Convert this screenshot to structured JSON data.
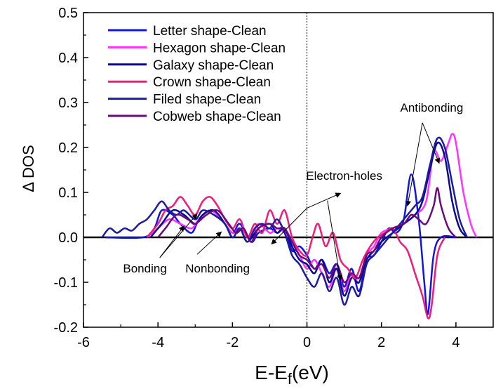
{
  "chart_data": {
    "type": "line",
    "ylabel": "Δ DOS",
    "xlabel_main": "E-E",
    "xlabel_sub": "f",
    "xlabel_unit": "(eV)",
    "xlim": [
      -6,
      5
    ],
    "ylim": [
      -0.2,
      0.5
    ],
    "x_ticks": [
      -6,
      -4,
      -2,
      0,
      2,
      4
    ],
    "x_tick_labels": [
      "-6",
      "-4",
      "-2",
      "0",
      "2",
      "4"
    ],
    "y_ticks": [
      -0.2,
      -0.1,
      0.0,
      0.1,
      0.2,
      0.3,
      0.4,
      0.5
    ],
    "y_tick_labels": [
      "-0.2",
      "-0.1",
      "0.0",
      "0.1",
      "0.2",
      "0.3",
      "0.4",
      "0.5"
    ],
    "grid": false,
    "legend_position": "top-left",
    "reference_lines": {
      "zero_y": true,
      "fermi_x": 0
    },
    "series": [
      {
        "name": "Letter shape-Clean",
        "color": "#1414e0",
        "points": [
          [
            -5.4,
            0
          ],
          [
            -4.4,
            0
          ],
          [
            -4.1,
            0.02
          ],
          [
            -3.9,
            0.06
          ],
          [
            -3.6,
            0.05
          ],
          [
            -3.4,
            0.03
          ],
          [
            -3.1,
            0.01
          ],
          [
            -2.9,
            0.04
          ],
          [
            -2.6,
            0.06
          ],
          [
            -2.3,
            0.04
          ],
          [
            -2.0,
            0.01
          ],
          [
            -1.8,
            0.03
          ],
          [
            -1.5,
            -0.01
          ],
          [
            -1.3,
            0.01
          ],
          [
            -1.0,
            0.02
          ],
          [
            -0.8,
            0.01
          ],
          [
            -0.6,
            0.02
          ],
          [
            -0.4,
            -0.03
          ],
          [
            -0.2,
            -0.02
          ],
          [
            0.0,
            -0.04
          ],
          [
            0.2,
            -0.07
          ],
          [
            0.4,
            -0.05
          ],
          [
            0.6,
            -0.08
          ],
          [
            0.8,
            -0.06
          ],
          [
            1.0,
            -0.11
          ],
          [
            1.2,
            -0.07
          ],
          [
            1.4,
            -0.12
          ],
          [
            1.6,
            -0.05
          ],
          [
            1.8,
            -0.04
          ],
          [
            2.0,
            -0.01
          ],
          [
            2.2,
            0.02
          ],
          [
            2.4,
            0.01
          ],
          [
            2.6,
            0.04
          ],
          [
            2.8,
            0.14
          ],
          [
            3.0,
            0.04
          ],
          [
            3.15,
            -0.1
          ],
          [
            3.25,
            -0.17
          ],
          [
            3.4,
            -0.04
          ],
          [
            3.6,
            0
          ],
          [
            4.0,
            0
          ]
        ]
      },
      {
        "name": "Hexagon shape-Clean",
        "color": "#ff33ff",
        "points": [
          [
            -4.3,
            0
          ],
          [
            -4.0,
            0.02
          ],
          [
            -3.7,
            0.04
          ],
          [
            -3.4,
            0.03
          ],
          [
            -3.1,
            0.02
          ],
          [
            -2.9,
            0.04
          ],
          [
            -2.6,
            0.06
          ],
          [
            -2.3,
            0.04
          ],
          [
            -2.0,
            0.01
          ],
          [
            -1.8,
            0.02
          ],
          [
            -1.5,
            0.0
          ],
          [
            -1.3,
            0.03
          ],
          [
            -1.0,
            0.01
          ],
          [
            -0.8,
            0.02
          ],
          [
            -0.6,
            0.01
          ],
          [
            -0.4,
            -0.01
          ],
          [
            -0.2,
            -0.04
          ],
          [
            0.0,
            -0.07
          ],
          [
            0.2,
            -0.05
          ],
          [
            0.4,
            -0.08
          ],
          [
            0.6,
            -0.11
          ],
          [
            0.8,
            -0.07
          ],
          [
            1.0,
            -0.12
          ],
          [
            1.2,
            -0.08
          ],
          [
            1.4,
            -0.1
          ],
          [
            1.6,
            -0.04
          ],
          [
            1.8,
            -0.02
          ],
          [
            2.0,
            0.01
          ],
          [
            2.3,
            0.02
          ],
          [
            2.6,
            0.03
          ],
          [
            2.9,
            0.05
          ],
          [
            3.2,
            0.08
          ],
          [
            3.4,
            0.19
          ],
          [
            3.6,
            0.17
          ],
          [
            3.8,
            0.21
          ],
          [
            3.9,
            0.23
          ],
          [
            4.0,
            0.21
          ],
          [
            4.2,
            0.1
          ],
          [
            4.4,
            0.03
          ],
          [
            4.55,
            0
          ]
        ]
      },
      {
        "name": "Galaxy shape-Clean",
        "color": "#0a0a8c",
        "points": [
          [
            -4.2,
            0
          ],
          [
            -3.9,
            0.03
          ],
          [
            -3.6,
            0.06
          ],
          [
            -3.3,
            0.05
          ],
          [
            -3.0,
            0.03
          ],
          [
            -2.8,
            0.05
          ],
          [
            -2.5,
            0.06
          ],
          [
            -2.2,
            0.03
          ],
          [
            -2.0,
            0.0
          ],
          [
            -1.8,
            0.02
          ],
          [
            -1.6,
            -0.01
          ],
          [
            -1.3,
            0.02
          ],
          [
            -1.0,
            0.03
          ],
          [
            -0.8,
            0.01
          ],
          [
            -0.6,
            0.02
          ],
          [
            -0.4,
            -0.02
          ],
          [
            -0.2,
            -0.05
          ],
          [
            0.0,
            -0.06
          ],
          [
            0.2,
            -0.08
          ],
          [
            0.4,
            -0.05
          ],
          [
            0.6,
            -0.1
          ],
          [
            0.8,
            -0.07
          ],
          [
            1.0,
            -0.13
          ],
          [
            1.2,
            -0.09
          ],
          [
            1.4,
            -0.1
          ],
          [
            1.6,
            -0.05
          ],
          [
            1.8,
            -0.03
          ],
          [
            2.0,
            -0.01
          ],
          [
            2.3,
            0.01
          ],
          [
            2.6,
            0.03
          ],
          [
            2.9,
            0.05
          ],
          [
            3.1,
            0.08
          ],
          [
            3.3,
            0.15
          ],
          [
            3.5,
            0.21
          ],
          [
            3.7,
            0.18
          ],
          [
            3.9,
            0.08
          ],
          [
            4.1,
            0.02
          ],
          [
            4.3,
            0
          ]
        ]
      },
      {
        "name": "Crown shape-Clean",
        "color": "#ee1c7a",
        "points": [
          [
            -4.3,
            0
          ],
          [
            -4.0,
            0.03
          ],
          [
            -3.8,
            0.06
          ],
          [
            -3.6,
            0.07
          ],
          [
            -3.4,
            0.09
          ],
          [
            -3.2,
            0.07
          ],
          [
            -3.0,
            0.05
          ],
          [
            -2.8,
            0.08
          ],
          [
            -2.6,
            0.09
          ],
          [
            -2.4,
            0.07
          ],
          [
            -2.2,
            0.04
          ],
          [
            -2.0,
            0.02
          ],
          [
            -1.8,
            0.04
          ],
          [
            -1.6,
            0.0
          ],
          [
            -1.4,
            0.03
          ],
          [
            -1.2,
            0.01
          ],
          [
            -1.0,
            0.06
          ],
          [
            -0.8,
            0.03
          ],
          [
            -0.6,
            0.06
          ],
          [
            -0.4,
            0.0
          ],
          [
            -0.2,
            -0.03
          ],
          [
            0.0,
            -0.04
          ],
          [
            0.15,
            0.0
          ],
          [
            0.3,
            0.03
          ],
          [
            0.5,
            -0.02
          ],
          [
            0.7,
            0.01
          ],
          [
            0.9,
            -0.05
          ],
          [
            1.1,
            -0.07
          ],
          [
            1.3,
            -0.09
          ],
          [
            1.5,
            -0.05
          ],
          [
            1.7,
            -0.02
          ],
          [
            1.9,
            0.0
          ],
          [
            2.1,
            0.01
          ],
          [
            2.3,
            0.02
          ],
          [
            2.5,
            -0.01
          ],
          [
            2.7,
            -0.03
          ],
          [
            2.9,
            -0.08
          ],
          [
            3.1,
            -0.13
          ],
          [
            3.25,
            -0.18
          ],
          [
            3.35,
            -0.15
          ],
          [
            3.5,
            -0.04
          ],
          [
            3.7,
            0
          ]
        ]
      },
      {
        "name": "Filed shape-Clean",
        "color": "#1c1c9c",
        "points": [
          [
            -5.5,
            0
          ],
          [
            -5.3,
            0.02
          ],
          [
            -5.1,
            0.01
          ],
          [
            -4.9,
            0.02
          ],
          [
            -4.7,
            0.015
          ],
          [
            -4.5,
            0.03
          ],
          [
            -4.3,
            0.04
          ],
          [
            -4.1,
            0.06
          ],
          [
            -3.9,
            0.08
          ],
          [
            -3.7,
            0.06
          ],
          [
            -3.5,
            0.05
          ],
          [
            -3.3,
            0.06
          ],
          [
            -3.0,
            0.04
          ],
          [
            -2.8,
            0.06
          ],
          [
            -2.5,
            0.05
          ],
          [
            -2.2,
            0.03
          ],
          [
            -2.0,
            0.0
          ],
          [
            -1.8,
            0.02
          ],
          [
            -1.6,
            -0.01
          ],
          [
            -1.4,
            0.02
          ],
          [
            -1.2,
            0.03
          ],
          [
            -1.0,
            0.02
          ],
          [
            -0.8,
            0.04
          ],
          [
            -0.6,
            0.01
          ],
          [
            -0.4,
            -0.04
          ],
          [
            -0.2,
            -0.06
          ],
          [
            0.0,
            -0.09
          ],
          [
            0.2,
            -0.11
          ],
          [
            0.4,
            -0.08
          ],
          [
            0.6,
            -0.12
          ],
          [
            0.8,
            -0.09
          ],
          [
            1.0,
            -0.15
          ],
          [
            1.2,
            -0.11
          ],
          [
            1.4,
            -0.13
          ],
          [
            1.6,
            -0.06
          ],
          [
            1.8,
            -0.04
          ],
          [
            2.0,
            -0.02
          ],
          [
            2.3,
            0.01
          ],
          [
            2.6,
            0.04
          ],
          [
            2.9,
            0.07
          ],
          [
            3.1,
            0.09
          ],
          [
            3.3,
            0.16
          ],
          [
            3.5,
            0.22
          ],
          [
            3.7,
            0.2
          ],
          [
            3.9,
            0.12
          ],
          [
            4.1,
            0.04
          ],
          [
            4.3,
            0
          ]
        ]
      },
      {
        "name": "Cobweb shape-Clean",
        "color": "#6a0a7a",
        "points": [
          [
            -4.0,
            0
          ],
          [
            -3.8,
            0.02
          ],
          [
            -3.5,
            0.05
          ],
          [
            -3.2,
            0.04
          ],
          [
            -3.0,
            0.03
          ],
          [
            -2.7,
            0.05
          ],
          [
            -2.4,
            0.06
          ],
          [
            -2.1,
            0.03
          ],
          [
            -1.9,
            0.01
          ],
          [
            -1.7,
            0.02
          ],
          [
            -1.5,
            -0.01
          ],
          [
            -1.3,
            0.02
          ],
          [
            -1.0,
            0.03
          ],
          [
            -0.8,
            0.02
          ],
          [
            -0.6,
            0.02
          ],
          [
            -0.4,
            -0.01
          ],
          [
            -0.2,
            -0.04
          ],
          [
            0.0,
            -0.05
          ],
          [
            0.2,
            -0.07
          ],
          [
            0.4,
            -0.06
          ],
          [
            0.6,
            -0.09
          ],
          [
            0.8,
            -0.06
          ],
          [
            1.0,
            -0.1
          ],
          [
            1.2,
            -0.08
          ],
          [
            1.4,
            -0.09
          ],
          [
            1.6,
            -0.04
          ],
          [
            1.8,
            -0.03
          ],
          [
            2.0,
            0.0
          ],
          [
            2.3,
            0.02
          ],
          [
            2.6,
            0.03
          ],
          [
            2.8,
            0.05
          ],
          [
            3.0,
            0.04
          ],
          [
            3.2,
            0.03
          ],
          [
            3.4,
            0.07
          ],
          [
            3.5,
            0.11
          ],
          [
            3.6,
            0.07
          ],
          [
            3.8,
            0.02
          ],
          [
            4.0,
            0
          ]
        ]
      }
    ],
    "annotations": [
      {
        "text": "Antibonding",
        "x": 3.35,
        "y": 0.28
      },
      {
        "text": "Electron-holes",
        "x": 1.0,
        "y": 0.128
      },
      {
        "text": "Bonding",
        "x": -4.35,
        "y": -0.078
      },
      {
        "text": "Nonbonding",
        "x": -2.4,
        "y": -0.078
      }
    ],
    "arrows": [
      {
        "from": [
          3.1,
          0.255
        ],
        "to": [
          2.7,
          0.07
        ]
      },
      {
        "from": [
          3.1,
          0.255
        ],
        "to": [
          3.55,
          0.165
        ]
      },
      {
        "from": [
          0.0,
          0.065
        ],
        "to": [
          -0.95,
          -0.015
        ]
      },
      {
        "from": [
          0.0,
          0.065
        ],
        "to": [
          0.9,
          0.098
        ]
      },
      {
        "from": [
          0.55,
          0.082
        ],
        "to": [
          0.9,
          -0.095
        ]
      },
      {
        "from": [
          -3.95,
          -0.045
        ],
        "to": [
          -3.3,
          0.025
        ]
      },
      {
        "from": [
          -3.95,
          -0.045
        ],
        "to": [
          -2.95,
          0.052
        ]
      },
      {
        "from": [
          -2.95,
          -0.038
        ],
        "to": [
          -2.3,
          0.012
        ]
      }
    ]
  }
}
